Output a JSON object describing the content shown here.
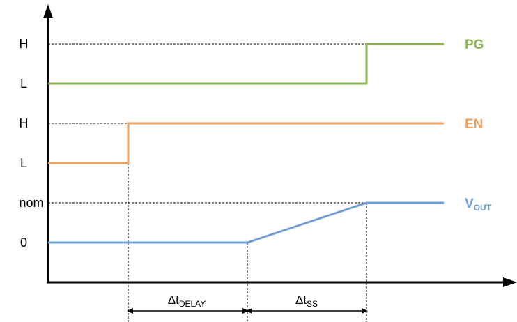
{
  "y_axis_labels": {
    "pg_high": "H",
    "pg_low": "L",
    "en_high": "H",
    "en_low": "L",
    "vout_nom": "nom",
    "vout_zero": "0"
  },
  "signals": {
    "pg": {
      "label": "PG",
      "color": "#8db255"
    },
    "en": {
      "label": "EN",
      "color": "#f0a15e"
    },
    "vout": {
      "label_main": "V",
      "label_sub": "OUT",
      "color": "#6f9ed8"
    }
  },
  "intervals": {
    "delay": {
      "main": "Δt",
      "sub": "DELAY"
    },
    "softstart": {
      "main": "Δt",
      "sub": "SS"
    }
  }
}
